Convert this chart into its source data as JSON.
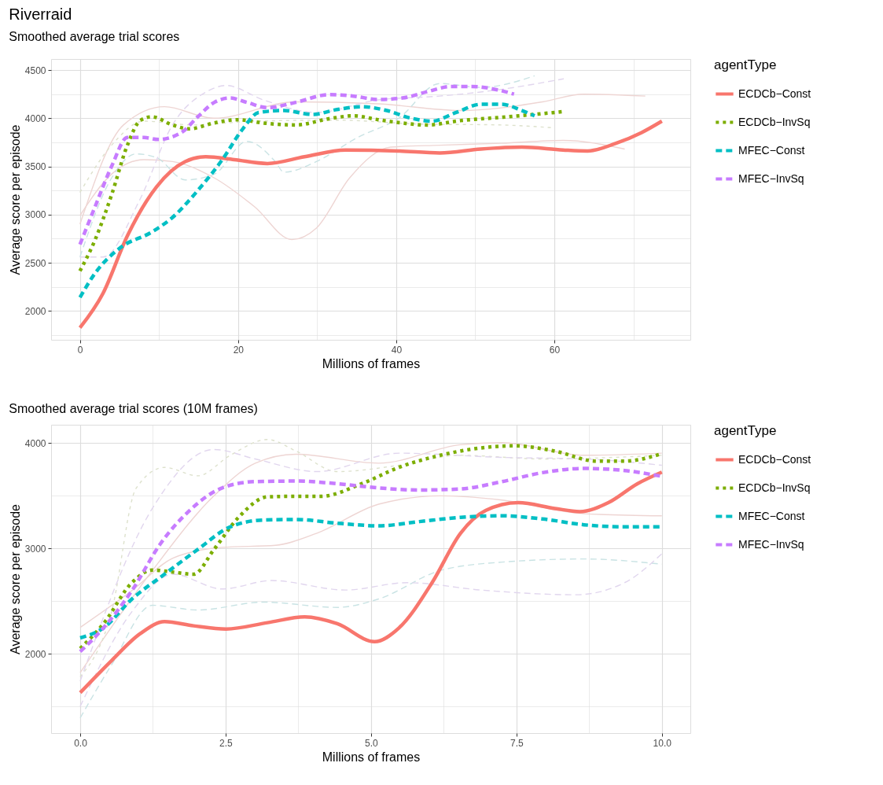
{
  "chart_data": [
    {
      "type": "line",
      "title": "Riverraid",
      "subtitle": "Smoothed average trial scores",
      "xlabel": "Millions of frames",
      "ylabel": "Average score per episode",
      "legend_title": "agentType",
      "legend": "right",
      "grid": true,
      "xlim": [
        -3.65,
        77.2
      ],
      "xticks": [
        0,
        {
          "value": 10,
          "label": null
        },
        20,
        {
          "value": 30,
          "label": null
        },
        40,
        {
          "value": 50,
          "label": null
        },
        60,
        {
          "value": 70,
          "label": null
        }
      ],
      "ylim": [
        1700,
        4615
      ],
      "yticks": [
        {
          "value": 1750,
          "label": null
        },
        2000,
        {
          "value": 2250,
          "label": null
        },
        2500,
        {
          "value": 2750,
          "label": null
        },
        3000,
        {
          "value": 3250,
          "label": null
        },
        3500,
        {
          "value": 3750,
          "label": null
        },
        4000,
        {
          "value": 4250,
          "label": null
        },
        4500
      ],
      "series": [
        {
          "color": "#eed5d3",
          "line_style": "solid",
          "x": [
            0,
            4,
            8.1,
            11.7,
            17,
            22.1,
            26.8,
            29.9,
            34.1,
            39.3,
            45.5,
            53.3,
            61.1,
            68.9
          ],
          "values": [
            2990,
            3420,
            3570,
            3550,
            3380,
            3080,
            2740,
            2860,
            3380,
            3700,
            3720,
            3740,
            3770,
            3680
          ]
        },
        {
          "color": "#eed5d3",
          "line_style": "solid",
          "x": [
            0,
            5.5,
            10.7,
            16.9,
            27.3,
            37.7,
            48.1,
            58.5,
            63.7,
            71.5
          ],
          "values": [
            2900,
            3930,
            4120,
            4000,
            4170,
            4150,
            4080,
            4170,
            4250,
            4230
          ]
        },
        {
          "color": "#dde1cc",
          "line_style": "dotted",
          "x": [
            0,
            4,
            8.1,
            14.3,
            22.1,
            32.5,
            42.9,
            53.3,
            60
          ],
          "values": [
            3230,
            3720,
            3970,
            3930,
            3970,
            3980,
            3940,
            3930,
            3900
          ]
        },
        {
          "color": "#c9e3e4",
          "line_style": "dashed",
          "x": [
            0,
            4,
            7.1,
            9.7,
            13.3,
            17,
            21.1,
            24.7,
            25.8,
            29.9,
            35.1,
            40.3,
            45.5,
            50.7,
            57.5
          ],
          "values": [
            2560,
            3380,
            3630,
            3590,
            3360,
            3420,
            3760,
            3550,
            3440,
            3550,
            3800,
            4000,
            4360,
            4320,
            4440
          ]
        },
        {
          "color": "#e1d6ee",
          "line_style": "dashed",
          "x": [
            0,
            2.9,
            7.6,
            11.7,
            15.9,
            18.5,
            23.2,
            29.9,
            37.7,
            45.5,
            53.3,
            61.2
          ],
          "values": [
            2560,
            2560,
            3160,
            3930,
            4270,
            4340,
            4190,
            4060,
            4190,
            4230,
            4300,
            4410
          ]
        },
        {
          "name": "ECDCb−Const",
          "color": "#f8766d",
          "line_style": "solid",
          "x": [
            0,
            2.9,
            6,
            9.7,
            13.3,
            15.9,
            19.5,
            23.7,
            28.4,
            33.6,
            40.3,
            45.5,
            50.7,
            55.9,
            61.1,
            64.2,
            67.8,
            71,
            73.6
          ],
          "values": [
            1825,
            2180,
            2780,
            3290,
            3550,
            3600,
            3570,
            3530,
            3600,
            3670,
            3660,
            3640,
            3680,
            3700,
            3670,
            3660,
            3740,
            3850,
            3970
          ]
        },
        {
          "name": "ECDCb−InvSq",
          "color": "#7cae00",
          "line_style": "dotted",
          "x": [
            0,
            1.9,
            4,
            6,
            7.6,
            9.1,
            11.7,
            13.8,
            16.9,
            20,
            23.2,
            27.3,
            31.5,
            34.6,
            37.7,
            40.8,
            43.9,
            48.1,
            53.3,
            57.5,
            61.3
          ],
          "values": [
            2415,
            2735,
            3205,
            3720,
            3975,
            4015,
            3930,
            3890,
            3950,
            3985,
            3950,
            3930,
            3995,
            4025,
            3985,
            3950,
            3930,
            3975,
            4010,
            4040,
            4070
          ]
        },
        {
          "name": "MFEC−Const",
          "color": "#00bfc4",
          "line_style": "dashed",
          "x": [
            0,
            1.9,
            5,
            9.1,
            11.7,
            14.9,
            18,
            20.6,
            22.6,
            25.8,
            29.4,
            32.5,
            35.6,
            38.8,
            41.9,
            44.5,
            47.6,
            50.7,
            53.3,
            55.9,
            57.5
          ],
          "values": [
            2140,
            2390,
            2650,
            2820,
            2970,
            3250,
            3570,
            3890,
            4060,
            4080,
            4040,
            4090,
            4120,
            4080,
            4000,
            3970,
            4060,
            4145,
            4145,
            4080,
            4025
          ]
        },
        {
          "name": "MFEC−InvSq",
          "color": "#c77cff",
          "line_style": "dashed",
          "x": [
            0,
            1.9,
            4,
            6,
            8.1,
            9.9,
            12.8,
            14.9,
            17,
            19,
            21.1,
            23.7,
            27.3,
            31.5,
            34.6,
            37.7,
            40.8,
            43.9,
            47,
            49.6,
            52.8,
            54.9
          ],
          "values": [
            2690,
            3080,
            3500,
            3800,
            3800,
            3780,
            3850,
            4015,
            4165,
            4210,
            4165,
            4110,
            4165,
            4245,
            4230,
            4195,
            4210,
            4275,
            4330,
            4330,
            4295,
            4250
          ]
        }
      ]
    },
    {
      "type": "line",
      "title": "Smoothed average trial scores (10M frames)",
      "xlabel": "Millions of frames",
      "ylabel": "Average score per episode",
      "legend_title": "agentType",
      "legend": "right",
      "grid": true,
      "xlim": [
        -0.5,
        10.49
      ],
      "xticks": [
        {
          "value": 0,
          "label": "0.0"
        },
        {
          "value": 1.25,
          "label": null
        },
        2.5,
        {
          "value": 3.75,
          "label": null
        },
        {
          "value": 5,
          "label": "5.0"
        },
        {
          "value": 6.25,
          "label": null
        },
        7.5,
        {
          "value": 8.75,
          "label": null
        },
        {
          "value": 10,
          "label": "10.0"
        }
      ],
      "ylim": [
        1246,
        4175
      ],
      "yticks": [
        {
          "value": 1500,
          "label": null
        },
        2000,
        {
          "value": 2500,
          "label": null
        },
        3000,
        {
          "value": 3500,
          "label": null
        },
        4000
      ],
      "series": [
        {
          "color": "#eed5d3",
          "line_style": "solid",
          "x": [
            0,
            0.89,
            1.6,
            2.44,
            3.36,
            4.07,
            5.13,
            6.19,
            7.25,
            8.66,
            10
          ],
          "values": [
            2250,
            2600,
            2910,
            3010,
            3030,
            3145,
            3420,
            3500,
            3460,
            3330,
            3310
          ]
        },
        {
          "color": "#eed5d3",
          "line_style": "solid",
          "x": [
            0,
            1.24,
            2.3,
            3.01,
            3.71,
            5.13,
            6.54,
            7.25,
            8.66,
            10
          ],
          "values": [
            1820,
            2790,
            3500,
            3810,
            3895,
            3810,
            3985,
            4005,
            3885,
            3905
          ]
        },
        {
          "color": "#dde1cc",
          "line_style": "dotted",
          "x": [
            0,
            0.54,
            0.96,
            1.45,
            2.02,
            2.58,
            3.22,
            3.71,
            4.42,
            5.48,
            6.54,
            7.95,
            10
          ],
          "values": [
            1780,
            2400,
            3570,
            3770,
            3690,
            3885,
            4035,
            3925,
            3730,
            3790,
            3885,
            3850,
            3885
          ]
        },
        {
          "color": "#c9e3e4",
          "line_style": "dashed",
          "x": [
            0,
            0.54,
            1.24,
            2.02,
            3.15,
            4.42,
            5.13,
            6.19,
            7.25,
            8.66,
            10
          ],
          "values": [
            1390,
            1895,
            2460,
            2415,
            2490,
            2440,
            2520,
            2790,
            2870,
            2900,
            2850
          ]
        },
        {
          "color": "#e1d6ee",
          "line_style": "dashed",
          "x": [
            0,
            0.89,
            1.6,
            2.44,
            3.29,
            4.56,
            5.62,
            6.89,
            8.52,
            9.36,
            10
          ],
          "values": [
            1500,
            2400,
            2755,
            2615,
            2695,
            2605,
            2675,
            2605,
            2560,
            2675,
            2950
          ]
        },
        {
          "color": "#e1d6ee",
          "line_style": "dashed",
          "x": [
            0,
            1.24,
            2.3,
            3.01,
            4.07,
            5.48,
            7.25,
            8.66,
            10
          ],
          "values": [
            1740,
            3380,
            3940,
            3850,
            3730,
            3905,
            3865,
            3850,
            3790
          ]
        },
        {
          "name": "ECDCb−Const",
          "color": "#f8766d",
          "line_style": "solid",
          "x": [
            0,
            0.54,
            1.03,
            1.45,
            1.95,
            2.51,
            3.22,
            3.86,
            4.42,
            5.06,
            5.48,
            6.05,
            6.54,
            6.97,
            7.53,
            8.16,
            8.59,
            9.08,
            9.58,
            10
          ],
          "values": [
            1630,
            1935,
            2190,
            2305,
            2265,
            2235,
            2295,
            2350,
            2285,
            2115,
            2245,
            2675,
            3145,
            3360,
            3435,
            3380,
            3350,
            3435,
            3615,
            3725
          ]
        },
        {
          "name": "ECDCb−InvSq",
          "color": "#7cae00",
          "line_style": "dotted",
          "x": [
            0,
            0.4,
            0.89,
            1.24,
            1.6,
            1.95,
            2.3,
            2.73,
            3.22,
            3.71,
            4.14,
            4.84,
            5.48,
            6.19,
            6.89,
            7.46,
            8.16,
            8.87,
            9.36,
            10
          ],
          "values": [
            2050,
            2285,
            2675,
            2795,
            2775,
            2755,
            2990,
            3300,
            3490,
            3495,
            3495,
            3615,
            3770,
            3885,
            3955,
            3975,
            3925,
            3830,
            3830,
            3900
          ]
        },
        {
          "name": "MFEC−Const",
          "color": "#00bfc4",
          "line_style": "dashed",
          "x": [
            0,
            0.4,
            0.89,
            1.45,
            2.02,
            2.58,
            3.15,
            3.71,
            4.42,
            5.13,
            5.83,
            6.54,
            7.25,
            7.95,
            8.66,
            9.36,
            10
          ],
          "values": [
            2150,
            2245,
            2520,
            2755,
            2990,
            3205,
            3270,
            3275,
            3240,
            3215,
            3255,
            3295,
            3310,
            3280,
            3225,
            3205,
            3205
          ]
        },
        {
          "name": "MFEC−InvSq",
          "color": "#c77cff",
          "line_style": "dashed",
          "x": [
            0,
            0.4,
            0.89,
            1.38,
            1.88,
            2.44,
            3.01,
            3.71,
            4.42,
            5.13,
            5.83,
            6.54,
            7.25,
            7.95,
            8.66,
            9.36,
            10
          ],
          "values": [
            2020,
            2245,
            2600,
            3045,
            3360,
            3575,
            3635,
            3640,
            3615,
            3575,
            3555,
            3565,
            3635,
            3720,
            3760,
            3740,
            3685
          ]
        }
      ]
    }
  ]
}
